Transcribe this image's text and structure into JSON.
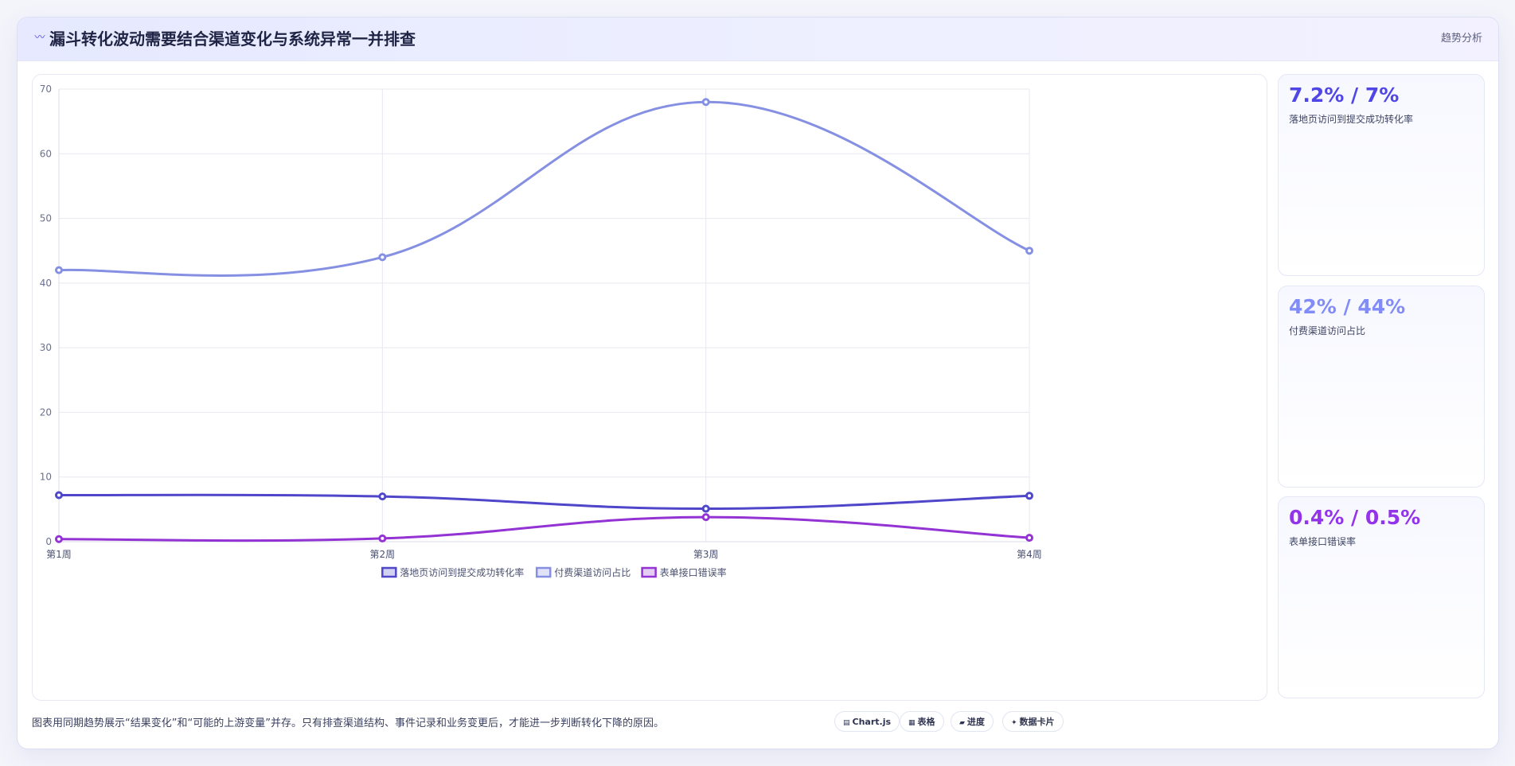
{
  "header": {
    "icon": "chart-line-icon",
    "title": "漏斗转化波动需要结合渠道变化与系统异常一并排查",
    "badge": "趋势分析"
  },
  "chart_data": {
    "type": "line",
    "categories": [
      "第1周",
      "第2周",
      "第3周",
      "第4周"
    ],
    "series": [
      {
        "name": "落地页访问到提交成功转化率",
        "values": [
          7.2,
          7.0,
          5.1,
          7.1
        ],
        "color": "#4f46c9"
      },
      {
        "name": "付费渠道访问占比",
        "values": [
          42,
          44,
          68,
          45
        ],
        "color": "#8590e3"
      },
      {
        "name": "表单接口错误率",
        "values": [
          0.4,
          0.5,
          3.8,
          0.6
        ],
        "color": "#9333d3"
      }
    ],
    "yticks": [
      "0",
      "10",
      "20",
      "30",
      "40",
      "50",
      "60",
      "70"
    ],
    "ylim": [
      0,
      70
    ],
    "grid": true,
    "legend_position": "bottom"
  },
  "stats": [
    {
      "value": "7.2% / 7%",
      "label": "落地页访问到提交成功转化率",
      "color": "#4f46e5"
    },
    {
      "value": "42% / 44%",
      "label": "付费渠道访问占比",
      "color": "#818cf8"
    },
    {
      "value": "0.4% / 0.5%",
      "label": "表单接口错误率",
      "color": "#9333ea"
    }
  ],
  "footer": {
    "note": "图表用同期趋势展示“结果变化”和“可能的上游变量”并存。只有排查渠道结构、事件记录和业务变更后，才能进一步判断转化下降的原因。",
    "chips": [
      {
        "icon": "chart-icon",
        "glyph": "▤",
        "label": "Chart.js"
      },
      {
        "icon": "table-icon",
        "glyph": "▦",
        "label": "表格"
      },
      {
        "icon": "progress-icon",
        "glyph": "▰",
        "label": "进度"
      },
      {
        "icon": "sparkle-icon",
        "glyph": "✦",
        "label": "数据卡片"
      }
    ]
  }
}
